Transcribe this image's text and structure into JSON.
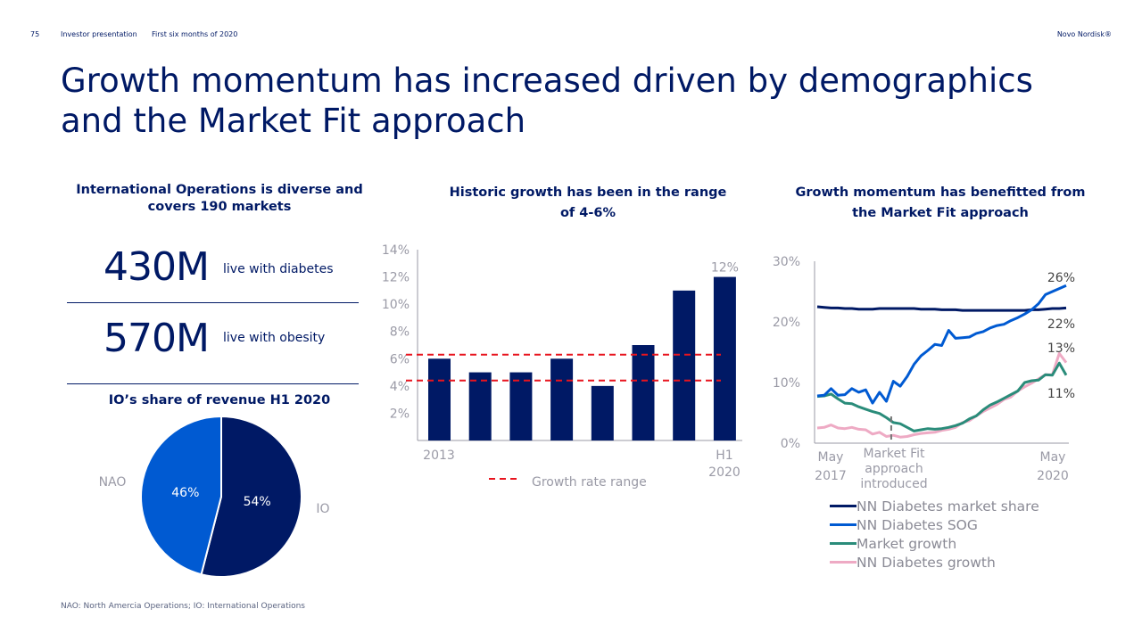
{
  "header": {
    "page_number": "75",
    "doc": "Investor presentation",
    "period": "First six months of 2020",
    "brand": "Novo Nordisk®"
  },
  "title": "Growth momentum has increased driven by demographics and the Market Fit approach",
  "left": {
    "heading": "International Operations is diverse and covers 190 markets",
    "stats": [
      {
        "value": "430M",
        "label": "live with diabetes"
      },
      {
        "value": "570M",
        "label": "live with obesity"
      }
    ],
    "pie_heading": "IO’s share of revenue H1 2020"
  },
  "bar_heading": "Historic growth has been in the range of 4-6%",
  "line_heading": "Growth momentum has benefitted from the Market Fit approach",
  "footnote": "NAO: North Amercia Operations; IO: International Operations",
  "colors": {
    "navy": "#001965",
    "blue": "#005ad2",
    "green": "#2a8c7a",
    "pink": "#eeaac4",
    "red": "#e8141e",
    "grey": "#9a9aa6"
  },
  "chart_data": [
    {
      "type": "pie",
      "title": "IO’s share of revenue H1 2020",
      "slices": [
        {
          "label": "IO",
          "value": 54,
          "data_label": "54%",
          "color": "#001965"
        },
        {
          "label": "NAO",
          "value": 46,
          "data_label": "46%",
          "color": "#005ad2"
        }
      ]
    },
    {
      "type": "bar",
      "categories": [
        "2013",
        "",
        "",
        "",
        "",
        "",
        "",
        "H1 2020"
      ],
      "category_labels": {
        "first": "2013",
        "last_line1": "H1",
        "last_line2": "2020"
      },
      "values": [
        6,
        5,
        5,
        6,
        4,
        7,
        11,
        12
      ],
      "data_labels": {
        "7": "12%"
      },
      "ylim": [
        0,
        14
      ],
      "yticks": [
        "2%",
        "4%",
        "6%",
        "8%",
        "10%",
        "12%",
        "14%"
      ],
      "ytick_values": [
        2,
        4,
        6,
        8,
        10,
        12,
        14
      ],
      "reference_lines": [
        6.3,
        4.4
      ],
      "reference_label": "Growth rate range",
      "grid": false,
      "bar_color": "#001965"
    },
    {
      "type": "line",
      "x_start": "May 2017",
      "x_end": "May 2020",
      "xlabels": {
        "start": [
          "May",
          "2017"
        ],
        "end": [
          "May",
          "2020"
        ]
      },
      "annotation": {
        "label": [
          "Market Fit",
          "approach",
          "introduced"
        ],
        "month_index": 10.7
      },
      "ylim": [
        0,
        30
      ],
      "yticks": [
        "0%",
        "10%",
        "20%",
        "30%"
      ],
      "ytick_values": [
        0,
        10,
        20,
        30
      ],
      "legend": "bottom",
      "grid": false,
      "series": [
        {
          "name": "NN Diabetes market share",
          "color": "#001965",
          "end_label": "22%",
          "values": [
            22.5,
            22.4,
            22.3,
            22.3,
            22.2,
            22.2,
            22.1,
            22.1,
            22.1,
            22.2,
            22.2,
            22.2,
            22.2,
            22.2,
            22.2,
            22.1,
            22.1,
            22.1,
            22.0,
            22.0,
            22.0,
            21.9,
            21.9,
            21.9,
            21.9,
            21.9,
            21.9,
            21.9,
            21.9,
            21.9,
            21.9,
            22.0,
            22.0,
            22.1,
            22.2,
            22.2,
            22.3
          ]
        },
        {
          "name": "NN Diabetes SOG",
          "color": "#005ad2",
          "end_label": "26%",
          "values": [
            7.8,
            7.9,
            9.0,
            7.9,
            8.0,
            9.0,
            8.4,
            8.8,
            6.6,
            8.4,
            6.9,
            10.2,
            9.4,
            11.0,
            13.0,
            14.4,
            15.3,
            16.3,
            16.1,
            18.6,
            17.3,
            17.4,
            17.5,
            18.1,
            18.4,
            19.0,
            19.4,
            19.6,
            20.2,
            20.7,
            21.3,
            22.0,
            23.0,
            24.5,
            25.0,
            25.5,
            26.0
          ]
        },
        {
          "name": "Market growth",
          "color": "#2a8c7a",
          "end_label": "11%",
          "values": [
            7.7,
            7.8,
            8.1,
            7.3,
            6.6,
            6.5,
            6.0,
            5.6,
            5.2,
            4.9,
            4.2,
            3.4,
            3.2,
            2.6,
            2.0,
            2.2,
            2.4,
            2.3,
            2.4,
            2.6,
            2.9,
            3.3,
            4.0,
            4.5,
            5.5,
            6.3,
            6.8,
            7.4,
            8.0,
            8.6,
            10.0,
            10.3,
            10.4,
            11.3,
            11.2,
            13.2,
            11.2
          ]
        },
        {
          "name": "NN Diabetes growth",
          "color": "#eeaac4",
          "end_label": "13%",
          "values": [
            2.5,
            2.6,
            3.0,
            2.5,
            2.4,
            2.6,
            2.3,
            2.2,
            1.5,
            1.8,
            1.1,
            1.3,
            1.0,
            1.1,
            1.4,
            1.6,
            1.7,
            1.8,
            2.1,
            2.3,
            2.6,
            3.4,
            3.7,
            4.5,
            5.2,
            5.8,
            6.4,
            7.2,
            7.6,
            8.6,
            9.3,
            9.9,
            10.6,
            11.3,
            11.3,
            14.8,
            13.3
          ]
        }
      ]
    }
  ]
}
